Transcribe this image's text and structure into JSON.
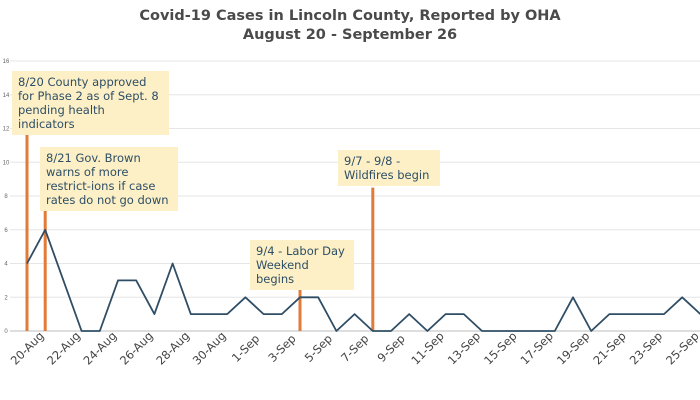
{
  "chart_data": {
    "type": "line",
    "title": "Covid-19  Cases in Lincoln County, Reported by OHA",
    "subtitle": "August 20 - September 26",
    "xlabel": "",
    "ylabel": "",
    "ylim": [
      0,
      16
    ],
    "yticks": [
      "0",
      "2",
      "4",
      "6",
      "8",
      "10",
      "12",
      "14",
      "16"
    ],
    "grid": "horizontal",
    "legend": "none",
    "x": [
      "20-Aug",
      "21-Aug",
      "22-Aug",
      "23-Aug",
      "24-Aug",
      "25-Aug",
      "26-Aug",
      "27-Aug",
      "28-Aug",
      "29-Aug",
      "30-Aug",
      "31-Aug",
      "1-Sep",
      "2-Sep",
      "3-Sep",
      "4-Sep",
      "5-Sep",
      "6-Sep",
      "7-Sep",
      "8-Sep",
      "9-Sep",
      "10-Sep",
      "11-Sep",
      "12-Sep",
      "13-Sep",
      "14-Sep",
      "15-Sep",
      "16-Sep",
      "17-Sep",
      "18-Sep",
      "19-Sep",
      "20-Sep",
      "21-Sep",
      "22-Sep",
      "23-Sep",
      "24-Sep",
      "25-Sep",
      "26-Sep"
    ],
    "xtick_labels": [
      "20-Aug",
      "22-Aug",
      "24-Aug",
      "26-Aug",
      "28-Aug",
      "30-Aug",
      "1-Sep",
      "3-Sep",
      "5-Sep",
      "7-Sep",
      "9-Sep",
      "11-Sep",
      "13-Sep",
      "15-Sep",
      "17-Sep",
      "19-Sep",
      "21-Sep",
      "23-Sep",
      "25-Sep"
    ],
    "series": [
      {
        "color": "#2f4e66",
        "values": [
          4,
          6,
          3,
          0,
          0,
          3,
          3,
          1,
          4,
          1,
          1,
          1,
          2,
          1,
          1,
          2,
          2,
          0,
          1,
          0,
          0,
          1,
          0,
          1,
          1,
          0,
          0,
          0,
          0,
          0,
          2,
          0,
          1,
          1,
          1,
          1,
          2,
          1
        ]
      }
    ],
    "markers": [
      {
        "date": "20-Aug",
        "value": 12.5,
        "color": "#e07b39"
      },
      {
        "date": "21-Aug",
        "value": 7.3,
        "color": "#e07b39"
      },
      {
        "date": "4-Sep",
        "value": 2.8,
        "color": "#e07b39"
      },
      {
        "date": "8-Sep",
        "value": 8.5,
        "color": "#e07b39"
      }
    ],
    "annotations": [
      {
        "text": "8/20 County approved\nfor Phase 2 as of Sept. 8\npending health indicators"
      },
      {
        "text": "8/21 Gov. Brown\nwarns of more\nrestrict-ions if case\nrates do not go down"
      },
      {
        "text": "9/4 - Labor Day\nWeekend begins"
      },
      {
        "text": "9/7 - 9/8 -\nWildfires begin"
      }
    ]
  }
}
